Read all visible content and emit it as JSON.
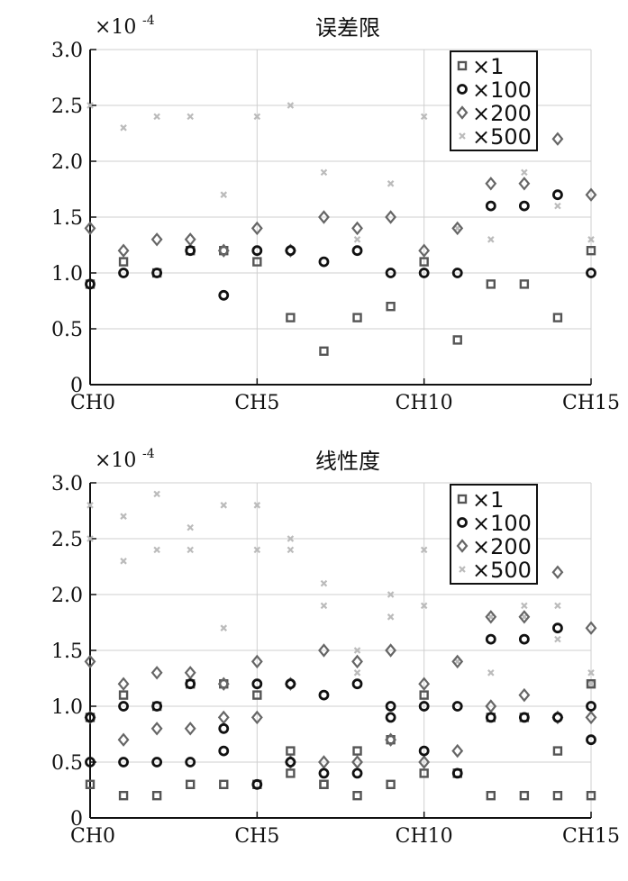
{
  "chart_data": [
    {
      "type": "scatter",
      "title": "误差限",
      "scale_label": "×10",
      "scale_exponent": "-4",
      "ylim": [
        0,
        3.0
      ],
      "xlim": [
        0,
        15
      ],
      "x_tick_labels": [
        "CH0",
        "CH5",
        "CH10",
        "CH15"
      ],
      "x_ticks": [
        0,
        5,
        10,
        15
      ],
      "y_ticks": [
        0,
        0.5,
        1.0,
        1.5,
        2.0,
        2.5,
        3.0
      ],
      "y_tick_labels": [
        "0",
        "0.5",
        "1.0",
        "1.5",
        "2.0",
        "2.5",
        "3.0"
      ],
      "grid": true,
      "legend_position": "top-right",
      "series": [
        {
          "name": "×1",
          "marker": "square",
          "color": "#555555",
          "points": [
            [
              0,
              0.9
            ],
            [
              1,
              1.1
            ],
            [
              2,
              1.0
            ],
            [
              3,
              1.2
            ],
            [
              4,
              1.2
            ],
            [
              5,
              1.1
            ],
            [
              6,
              0.6
            ],
            [
              7,
              0.3
            ],
            [
              8,
              0.6
            ],
            [
              9,
              0.7
            ],
            [
              10,
              1.1
            ],
            [
              11,
              0.4
            ],
            [
              12,
              0.9
            ],
            [
              13,
              0.9
            ],
            [
              14,
              0.6
            ],
            [
              15,
              1.2
            ]
          ]
        },
        {
          "name": "×100",
          "marker": "circle",
          "color": "#111111",
          "points": [
            [
              0,
              0.9
            ],
            [
              1,
              1.0
            ],
            [
              2,
              1.0
            ],
            [
              3,
              1.2
            ],
            [
              4,
              0.8
            ],
            [
              5,
              1.2
            ],
            [
              6,
              1.2
            ],
            [
              7,
              1.1
            ],
            [
              8,
              1.2
            ],
            [
              9,
              1.0
            ],
            [
              10,
              1.0
            ],
            [
              11,
              1.0
            ],
            [
              12,
              1.6
            ],
            [
              13,
              1.6
            ],
            [
              14,
              1.7
            ],
            [
              15,
              1.0
            ]
          ]
        },
        {
          "name": "×200",
          "marker": "diamond",
          "color": "#666666",
          "points": [
            [
              0,
              1.4
            ],
            [
              1,
              1.2
            ],
            [
              2,
              1.3
            ],
            [
              3,
              1.3
            ],
            [
              4,
              1.2
            ],
            [
              5,
              1.4
            ],
            [
              6,
              1.2
            ],
            [
              7,
              1.5
            ],
            [
              8,
              1.4
            ],
            [
              9,
              1.5
            ],
            [
              10,
              1.2
            ],
            [
              11,
              1.4
            ],
            [
              12,
              1.8
            ],
            [
              13,
              1.8
            ],
            [
              14,
              2.2
            ],
            [
              15,
              1.7
            ]
          ]
        },
        {
          "name": "×500",
          "marker": "x",
          "color": "#bbbbbb",
          "points": [
            [
              0,
              2.5
            ],
            [
              1,
              2.3
            ],
            [
              2,
              2.4
            ],
            [
              3,
              2.4
            ],
            [
              4,
              1.7
            ],
            [
              5,
              2.4
            ],
            [
              6,
              2.5
            ],
            [
              7,
              1.9
            ],
            [
              8,
              1.3
            ],
            [
              9,
              1.8
            ],
            [
              10,
              2.4
            ],
            [
              11,
              1.4
            ],
            [
              12,
              1.3
            ],
            [
              13,
              1.9
            ],
            [
              14,
              1.6
            ],
            [
              15,
              1.3
            ]
          ]
        }
      ]
    },
    {
      "type": "scatter",
      "title": "线性度",
      "scale_label": "×10",
      "scale_exponent": "-4",
      "ylim": [
        0,
        3.0
      ],
      "xlim": [
        0,
        15
      ],
      "x_tick_labels": [
        "CH0",
        "CH5",
        "CH10",
        "CH15"
      ],
      "x_ticks": [
        0,
        5,
        10,
        15
      ],
      "y_ticks": [
        0,
        0.5,
        1.0,
        1.5,
        2.0,
        2.5,
        3.0
      ],
      "y_tick_labels": [
        "0",
        "0.5",
        "1.0",
        "1.5",
        "2.0",
        "2.5",
        "3.0"
      ],
      "grid": true,
      "legend_position": "top-right",
      "series": [
        {
          "name": "×1",
          "marker": "square",
          "color": "#555555",
          "points": [
            [
              0,
              0.9
            ],
            [
              1,
              1.1
            ],
            [
              2,
              1.0
            ],
            [
              3,
              1.2
            ],
            [
              4,
              1.2
            ],
            [
              5,
              1.1
            ],
            [
              6,
              0.6
            ],
            [
              7,
              0.3
            ],
            [
              8,
              0.6
            ],
            [
              9,
              0.7
            ],
            [
              10,
              1.1
            ],
            [
              11,
              0.4
            ],
            [
              12,
              0.9
            ],
            [
              13,
              0.9
            ],
            [
              14,
              0.6
            ],
            [
              15,
              1.2
            ],
            [
              0,
              0.3
            ],
            [
              1,
              0.2
            ],
            [
              2,
              0.2
            ],
            [
              3,
              0.3
            ],
            [
              4,
              0.3
            ],
            [
              5,
              0.3
            ],
            [
              6,
              0.4
            ],
            [
              7,
              0.3
            ],
            [
              8,
              0.2
            ],
            [
              9,
              0.3
            ],
            [
              10,
              0.4
            ],
            [
              11,
              0.4
            ],
            [
              12,
              0.2
            ],
            [
              13,
              0.2
            ],
            [
              14,
              0.2
            ],
            [
              15,
              0.2
            ]
          ]
        },
        {
          "name": "×100",
          "marker": "circle",
          "color": "#111111",
          "points": [
            [
              0,
              0.9
            ],
            [
              1,
              1.0
            ],
            [
              2,
              1.0
            ],
            [
              3,
              1.2
            ],
            [
              4,
              0.8
            ],
            [
              5,
              1.2
            ],
            [
              6,
              1.2
            ],
            [
              7,
              1.1
            ],
            [
              8,
              1.2
            ],
            [
              9,
              1.0
            ],
            [
              10,
              1.0
            ],
            [
              11,
              1.0
            ],
            [
              12,
              1.6
            ],
            [
              13,
              1.6
            ],
            [
              14,
              1.7
            ],
            [
              15,
              1.0
            ],
            [
              0,
              0.5
            ],
            [
              1,
              0.5
            ],
            [
              2,
              0.5
            ],
            [
              3,
              0.5
            ],
            [
              4,
              0.6
            ],
            [
              5,
              0.3
            ],
            [
              6,
              0.5
            ],
            [
              7,
              0.4
            ],
            [
              8,
              0.4
            ],
            [
              9,
              0.9
            ],
            [
              10,
              0.6
            ],
            [
              11,
              0.4
            ],
            [
              12,
              0.9
            ],
            [
              13,
              0.9
            ],
            [
              14,
              0.9
            ],
            [
              15,
              0.7
            ]
          ]
        },
        {
          "name": "×200",
          "marker": "diamond",
          "color": "#666666",
          "points": [
            [
              0,
              1.4
            ],
            [
              1,
              1.2
            ],
            [
              2,
              1.3
            ],
            [
              3,
              1.3
            ],
            [
              4,
              1.2
            ],
            [
              5,
              1.4
            ],
            [
              6,
              1.2
            ],
            [
              7,
              1.5
            ],
            [
              8,
              1.4
            ],
            [
              9,
              1.5
            ],
            [
              10,
              1.2
            ],
            [
              11,
              1.4
            ],
            [
              12,
              1.8
            ],
            [
              13,
              1.8
            ],
            [
              14,
              2.2
            ],
            [
              15,
              1.7
            ],
            [
              0,
              0.9
            ],
            [
              1,
              0.7
            ],
            [
              2,
              0.8
            ],
            [
              3,
              0.8
            ],
            [
              4,
              0.9
            ],
            [
              5,
              0.9
            ],
            [
              6,
              0.5
            ],
            [
              7,
              0.5
            ],
            [
              8,
              0.5
            ],
            [
              9,
              0.7
            ],
            [
              10,
              0.5
            ],
            [
              11,
              0.6
            ],
            [
              12,
              1.0
            ],
            [
              13,
              1.1
            ],
            [
              14,
              0.9
            ],
            [
              15,
              0.9
            ]
          ]
        },
        {
          "name": "×500",
          "marker": "x",
          "color": "#bbbbbb",
          "points": [
            [
              0,
              2.5
            ],
            [
              1,
              2.3
            ],
            [
              2,
              2.4
            ],
            [
              3,
              2.4
            ],
            [
              4,
              1.7
            ],
            [
              5,
              2.4
            ],
            [
              6,
              2.5
            ],
            [
              7,
              1.9
            ],
            [
              8,
              1.3
            ],
            [
              9,
              1.8
            ],
            [
              10,
              2.4
            ],
            [
              11,
              1.4
            ],
            [
              12,
              1.3
            ],
            [
              13,
              1.9
            ],
            [
              14,
              1.6
            ],
            [
              15,
              1.3
            ],
            [
              0,
              2.8
            ],
            [
              1,
              2.7
            ],
            [
              2,
              2.9
            ],
            [
              3,
              2.6
            ],
            [
              4,
              2.8
            ],
            [
              5,
              2.8
            ],
            [
              6,
              2.4
            ],
            [
              7,
              2.1
            ],
            [
              8,
              1.5
            ],
            [
              9,
              2.0
            ],
            [
              10,
              1.9
            ],
            [
              11,
              1.4
            ],
            [
              12,
              1.8
            ],
            [
              13,
              1.8
            ],
            [
              14,
              1.9
            ],
            [
              15,
              1.2
            ]
          ]
        }
      ]
    }
  ]
}
